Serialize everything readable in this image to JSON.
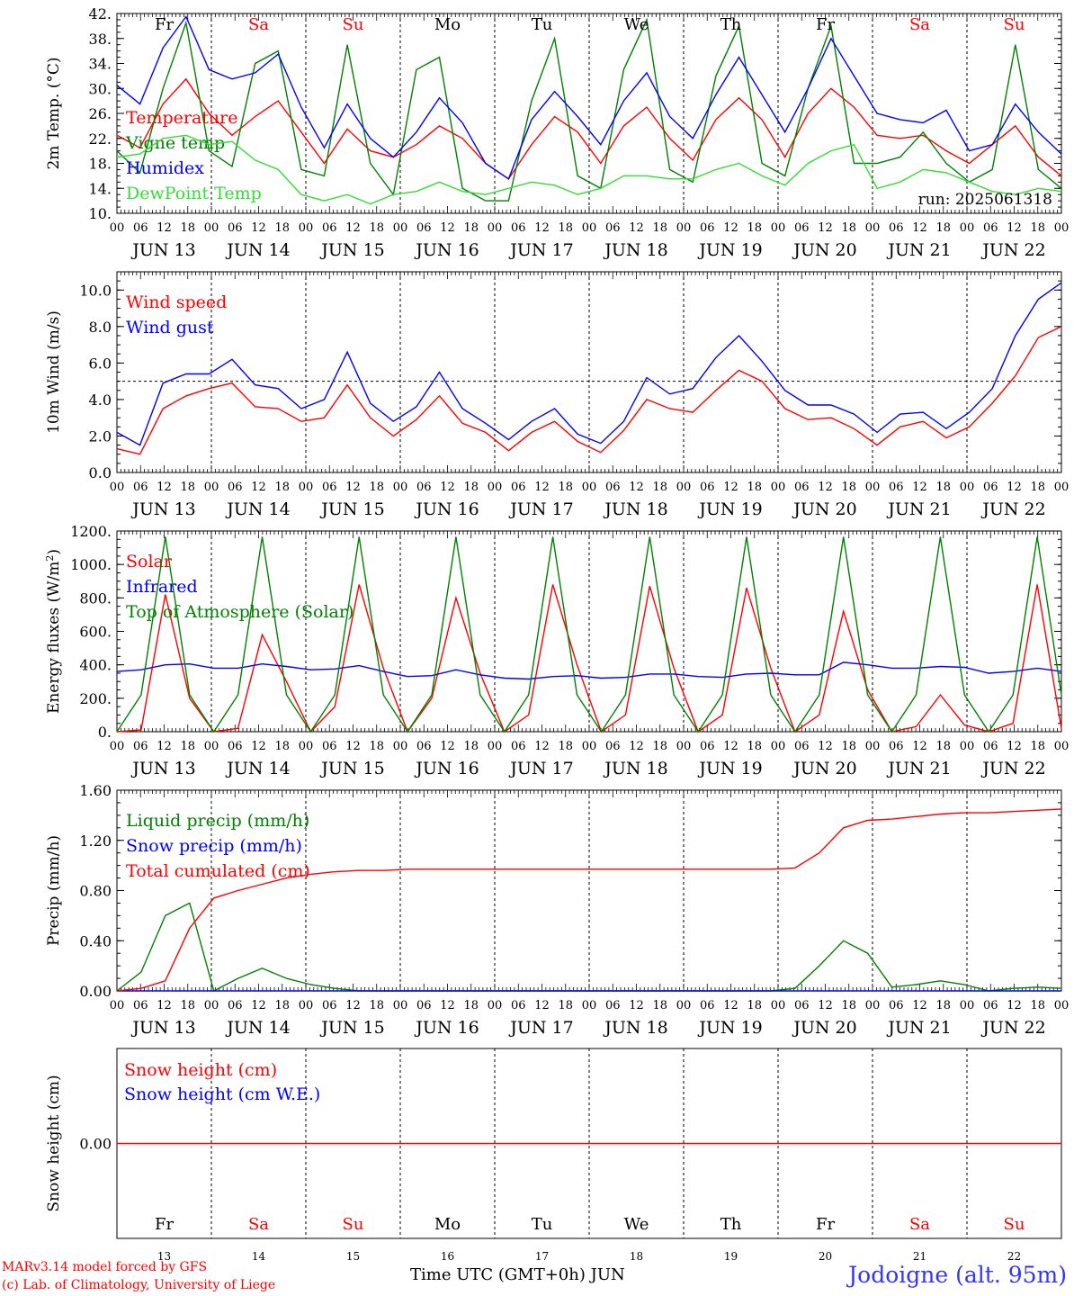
{
  "run_label": "run: 2025061318",
  "day_names": [
    "Fr",
    "Sa",
    "Su",
    "Mo",
    "Tu",
    "We",
    "Th",
    "Fr",
    "Sa",
    "Su"
  ],
  "weekend_flags": [
    false,
    true,
    true,
    false,
    false,
    false,
    false,
    false,
    true,
    true
  ],
  "date_labels": [
    "JUN 13",
    "JUN 14",
    "JUN 15",
    "JUN 16",
    "JUN 17",
    "JUN 18",
    "JUN 19",
    "JUN 20",
    "JUN 21",
    "JUN 22"
  ],
  "day_numbers": [
    "13",
    "14",
    "15",
    "16",
    "17",
    "18",
    "19",
    "20",
    "21",
    "22"
  ],
  "hour_ticks": [
    "00",
    "06",
    "12",
    "18"
  ],
  "hour_end": "00",
  "footer": {
    "model_line1": "MARv3.14 model forced by GFS",
    "model_line2": "(c) Lab. of Climatology, University of Liege",
    "axis_title": "Time UTC (GMT+0h)",
    "month": "JUN",
    "station": "Jodoigne (alt. 95m)"
  },
  "colors": {
    "red": "#ff0000",
    "green": "#008000",
    "blue": "#0000ff",
    "lightgreen": "#33dd33"
  },
  "chart_data": [
    {
      "type": "line",
      "ylabel": "2m Temp. (°C)",
      "ylim": [
        10,
        42
      ],
      "yticks": [
        "10.",
        "14.",
        "18.",
        "22.",
        "26.",
        "30.",
        "34.",
        "38.",
        "42."
      ],
      "x_hours_per_point": 6,
      "series": [
        {
          "name": "Temperature",
          "color": "red",
          "values": [
            22.5,
            20.5,
            27.5,
            31.5,
            26,
            22.5,
            25.5,
            28,
            23,
            18,
            23.5,
            20,
            19,
            21,
            24,
            22,
            18,
            15.5,
            21,
            25.5,
            23,
            18,
            24,
            27,
            22,
            18.5,
            25,
            28.5,
            25,
            19,
            26,
            30,
            27,
            22.5,
            22,
            22.5,
            20,
            18,
            21,
            24,
            19,
            16
          ]
        },
        {
          "name": "Vigne temp",
          "color": "green",
          "values": [
            20,
            16.5,
            30,
            40.5,
            20,
            17.5,
            34,
            36,
            17,
            16,
            37,
            18,
            13,
            33,
            35,
            14,
            12,
            12,
            28,
            38,
            16,
            14,
            33,
            41,
            17,
            15,
            32,
            40,
            18,
            16,
            30,
            40,
            18,
            18,
            19,
            23,
            18,
            15,
            17,
            37,
            17,
            14
          ]
        },
        {
          "name": "Humidex",
          "color": "blue",
          "values": [
            30.5,
            27.5,
            36.5,
            41.5,
            33,
            31.5,
            32.5,
            35.5,
            27,
            20.5,
            27.5,
            22,
            19,
            23,
            28.5,
            24.5,
            18,
            15.5,
            25,
            29.5,
            25.5,
            21,
            28,
            32.5,
            25.5,
            22,
            29,
            35,
            29,
            23,
            30,
            38,
            32,
            26,
            25,
            24.5,
            26.5,
            20,
            21,
            27.5,
            23,
            19.5
          ]
        },
        {
          "name": "DewPoint Temp",
          "color": "lightgreen",
          "values": [
            19,
            19.5,
            22,
            22.5,
            21,
            21.5,
            18.5,
            17,
            13,
            12,
            13,
            11.5,
            13,
            13.5,
            15,
            13.5,
            13,
            14,
            15,
            14.5,
            13,
            14,
            16,
            16,
            15.5,
            15.5,
            17,
            18,
            16,
            14.5,
            18,
            20,
            21,
            14,
            15,
            17,
            16.5,
            15,
            13.5,
            13,
            14,
            13.5
          ]
        }
      ]
    },
    {
      "type": "line",
      "ylabel": "10m Wind (m/s)",
      "ylim": [
        0,
        11
      ],
      "yticks": [
        "0.0",
        "2.0",
        "4.0",
        "6.0",
        "8.0",
        "10.0"
      ],
      "reference_line": 5,
      "x_hours_per_point": 6,
      "series": [
        {
          "name": "Wind speed",
          "color": "red",
          "values": [
            1.3,
            1.0,
            3.5,
            4.2,
            4.6,
            4.9,
            3.6,
            3.5,
            2.8,
            3.0,
            4.8,
            3.0,
            2.0,
            2.9,
            4.2,
            2.7,
            2.2,
            1.2,
            2.2,
            2.8,
            1.7,
            1.1,
            2.3,
            4.0,
            3.5,
            3.3,
            4.5,
            5.6,
            5.0,
            3.5,
            2.9,
            3.0,
            2.4,
            1.5,
            2.5,
            2.8,
            1.9,
            2.5,
            3.8,
            5.3,
            7.4,
            8.0
          ]
        },
        {
          "name": "Wind gust",
          "color": "blue",
          "values": [
            2.2,
            1.5,
            4.9,
            5.4,
            5.4,
            6.2,
            4.8,
            4.6,
            3.5,
            4.0,
            6.6,
            3.8,
            2.8,
            3.6,
            5.5,
            3.5,
            2.7,
            1.8,
            2.8,
            3.5,
            2.1,
            1.6,
            2.8,
            5.2,
            4.3,
            4.6,
            6.3,
            7.5,
            6.1,
            4.5,
            3.7,
            3.7,
            3.2,
            2.2,
            3.2,
            3.3,
            2.4,
            3.3,
            4.6,
            7.5,
            9.5,
            10.4
          ]
        }
      ]
    },
    {
      "type": "line",
      "ylabel": "Energy fluxes (W/m2)",
      "ylim": [
        0,
        1200
      ],
      "yticks": [
        "0.",
        "200.",
        "400.",
        "600.",
        "800.",
        "1000.",
        "1200."
      ],
      "x_hours_per_point": 6,
      "series": [
        {
          "name": "Solar",
          "color": "red",
          "values": [
            0,
            10,
            820,
            200,
            0,
            20,
            580,
            300,
            0,
            150,
            880,
            380,
            0,
            200,
            800,
            350,
            0,
            100,
            880,
            400,
            0,
            100,
            870,
            380,
            0,
            100,
            860,
            380,
            0,
            100,
            720,
            250,
            0,
            30,
            220,
            40,
            0,
            50,
            880,
            20
          ]
        },
        {
          "name": "Infrared",
          "color": "blue",
          "values": [
            360,
            370,
            400,
            405,
            380,
            380,
            405,
            390,
            370,
            375,
            395,
            360,
            330,
            335,
            370,
            340,
            320,
            315,
            330,
            335,
            320,
            325,
            345,
            345,
            330,
            325,
            345,
            350,
            340,
            340,
            415,
            400,
            380,
            380,
            390,
            385,
            350,
            360,
            380,
            360
          ]
        },
        {
          "name": "Top of Atmosphere (Solar)",
          "color": "green",
          "values": [
            0,
            220,
            1165,
            220,
            0,
            220,
            1165,
            220,
            0,
            220,
            1165,
            220,
            0,
            220,
            1165,
            220,
            0,
            220,
            1165,
            220,
            0,
            220,
            1165,
            220,
            0,
            220,
            1165,
            220,
            0,
            220,
            1165,
            220,
            0,
            220,
            1165,
            220,
            0,
            220,
            1165,
            220
          ]
        }
      ]
    },
    {
      "type": "line",
      "ylabel": "Precip (mm/h)",
      "ylim": [
        0,
        1.6
      ],
      "yticks": [
        "0.00",
        "0.40",
        "0.80",
        "1.20",
        "1.60"
      ],
      "x_hours_per_point": 6,
      "series": [
        {
          "name": "Liquid precip (mm/h)",
          "color": "green",
          "values": [
            0,
            0.15,
            0.6,
            0.7,
            0,
            0.1,
            0.18,
            0.1,
            0.05,
            0.02,
            0,
            0,
            0,
            0,
            0,
            0,
            0,
            0,
            0,
            0,
            0,
            0,
            0,
            0,
            0,
            0,
            0,
            0,
            0.02,
            0.2,
            0.4,
            0.3,
            0.03,
            0.05,
            0.08,
            0.05,
            0,
            0.02,
            0.03,
            0.02
          ]
        },
        {
          "name": "Snow precip (mm/h)",
          "color": "blue",
          "values": [
            0,
            0,
            0,
            0,
            0,
            0,
            0,
            0,
            0,
            0,
            0,
            0,
            0,
            0,
            0,
            0,
            0,
            0,
            0,
            0,
            0,
            0,
            0,
            0,
            0,
            0,
            0,
            0,
            0,
            0,
            0,
            0,
            0,
            0,
            0,
            0,
            0,
            0,
            0,
            0
          ]
        },
        {
          "name": "Total cumulated (cm)",
          "color": "red",
          "values": [
            0,
            0.02,
            0.08,
            0.5,
            0.74,
            0.8,
            0.85,
            0.9,
            0.93,
            0.95,
            0.96,
            0.96,
            0.97,
            0.97,
            0.97,
            0.97,
            0.97,
            0.97,
            0.97,
            0.97,
            0.97,
            0.97,
            0.97,
            0.97,
            0.97,
            0.97,
            0.97,
            0.97,
            0.98,
            1.1,
            1.3,
            1.36,
            1.37,
            1.39,
            1.41,
            1.42,
            1.42,
            1.43,
            1.44,
            1.45
          ]
        }
      ]
    },
    {
      "type": "line",
      "ylabel": "Snow height (cm)",
      "ylim": [
        -1,
        1
      ],
      "yticks": [
        "0.00"
      ],
      "x_hours_per_point": 6,
      "series": [
        {
          "name": "Snow height (cm)",
          "color": "red",
          "values": [
            0,
            0,
            0,
            0,
            0,
            0,
            0,
            0,
            0,
            0,
            0,
            0,
            0,
            0,
            0,
            0,
            0,
            0,
            0,
            0,
            0,
            0,
            0,
            0,
            0,
            0,
            0,
            0,
            0,
            0,
            0,
            0,
            0,
            0,
            0,
            0,
            0,
            0,
            0,
            0
          ]
        },
        {
          "name": "Snow height (cm W.E.)",
          "color": "blue",
          "values": []
        }
      ]
    }
  ]
}
